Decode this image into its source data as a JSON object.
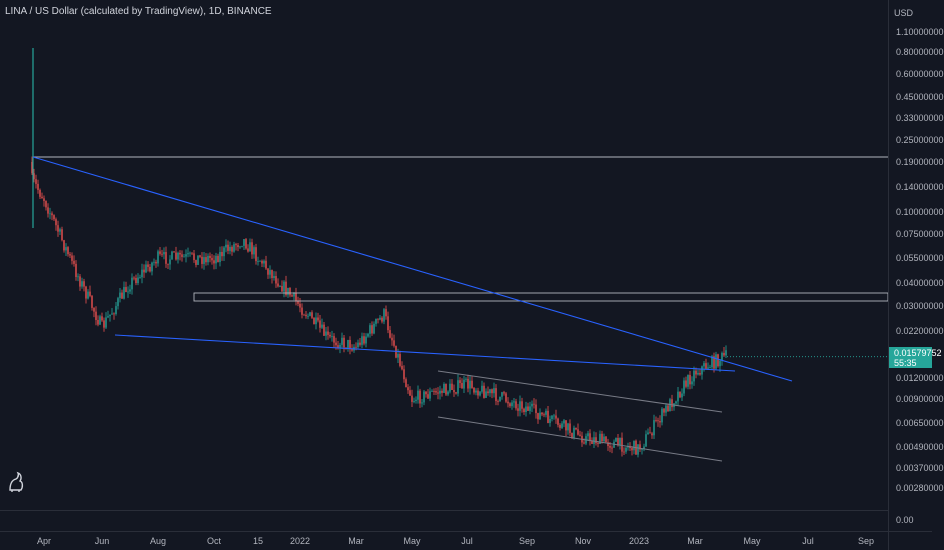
{
  "header": {
    "title": "LINA / US Dollar (calculated by TradingView), 1D, BINANCE"
  },
  "price_axis": {
    "currency": "USD",
    "labels": [
      "1.10000000",
      "0.80000000",
      "0.60000000",
      "0.45000000",
      "0.33000000",
      "0.25000000",
      "0.19000000",
      "0.14000000",
      "0.10000000",
      "0.07500000",
      "0.05500000",
      "0.04000000",
      "0.03000000",
      "0.02200000",
      "0.01200000",
      "0.00900000",
      "0.00650000",
      "0.00490000",
      "0.00370000",
      "0.00280000",
      "0.00"
    ],
    "last_price": "0.01579752",
    "countdown": "55:35"
  },
  "time_axis": {
    "labels": [
      "Apr",
      "Jun",
      "Aug",
      "Oct",
      "15",
      "2022",
      "Mar",
      "May",
      "Jul",
      "Sep",
      "Nov",
      "2023",
      "Mar",
      "May",
      "Jul",
      "Sep"
    ]
  },
  "colors": {
    "background": "#131722",
    "up": "#26a69a",
    "down": "#ef5350",
    "trendline": "#2962ff",
    "channel": "#787b86",
    "horizontal": "#b2b5be"
  },
  "chart_data": {
    "type": "candlestick",
    "symbol": "LINA / US Dollar",
    "interval": "1D",
    "exchange": "BINANCE",
    "scale": "log",
    "approx_close_path": [
      {
        "x": "Mar 2021",
        "y": 0.19
      },
      {
        "x": "Apr 2021",
        "y": 0.12
      },
      {
        "x": "May 2021",
        "y": 0.05
      },
      {
        "x": "Jun 2021",
        "y": 0.023
      },
      {
        "x": "Jul 2021",
        "y": 0.04
      },
      {
        "x": "Aug 2021",
        "y": 0.055
      },
      {
        "x": "Sep 2021",
        "y": 0.055
      },
      {
        "x": "Oct 2021",
        "y": 0.055
      },
      {
        "x": "Nov 2021",
        "y": 0.07
      },
      {
        "x": "Dec 2021",
        "y": 0.045
      },
      {
        "x": "Jan 2022",
        "y": 0.03
      },
      {
        "x": "Feb 2022",
        "y": 0.02
      },
      {
        "x": "Mar 2022",
        "y": 0.018
      },
      {
        "x": "Apr 2022",
        "y": 0.027
      },
      {
        "x": "May 2022",
        "y": 0.009
      },
      {
        "x": "Jun 2022",
        "y": 0.01
      },
      {
        "x": "Jul 2022",
        "y": 0.011
      },
      {
        "x": "Sep 2022",
        "y": 0.008
      },
      {
        "x": "Nov 2022",
        "y": 0.0055
      },
      {
        "x": "Jan 2023",
        "y": 0.0048
      },
      {
        "x": "Feb 2023",
        "y": 0.008
      },
      {
        "x": "Mar 2023",
        "y": 0.013
      },
      {
        "x": "Apr 2023",
        "y": 0.0158
      }
    ]
  }
}
